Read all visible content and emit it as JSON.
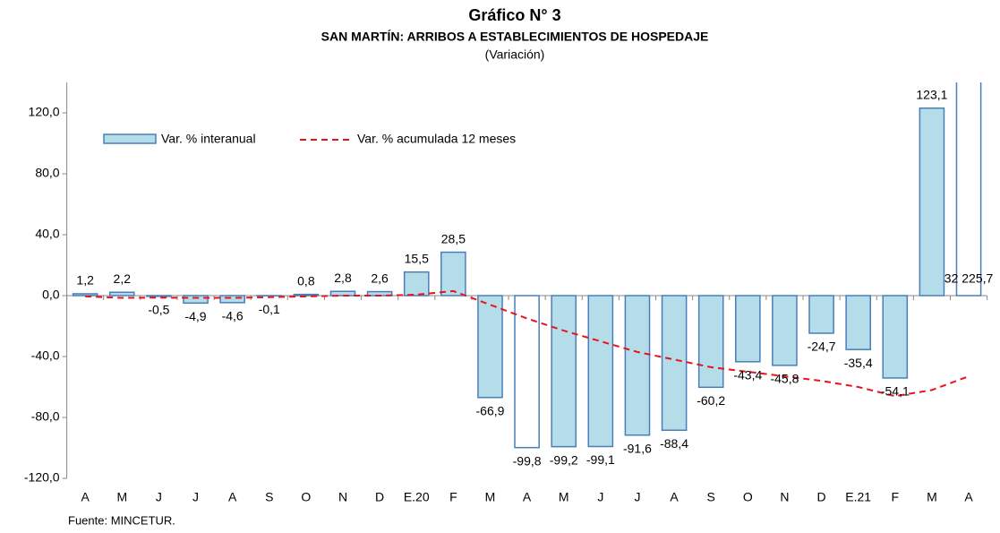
{
  "chart_data": {
    "type": "bar",
    "title": "Gráfico N° 3",
    "subtitle": "SAN MARTÍN: ARRIBOS A ESTABLECIMIENTOS DE HOSPEDAJE",
    "unit_note": "(Variación)",
    "source": "Fuente: MINCETUR.",
    "categories": [
      "A",
      "M",
      "J",
      "J",
      "A",
      "S",
      "O",
      "N",
      "D",
      "E.20",
      "F",
      "M",
      "A",
      "M",
      "J",
      "J",
      "A",
      "S",
      "O",
      "N",
      "D",
      "E.21",
      "F",
      "M",
      "A"
    ],
    "series": [
      {
        "name": "Var. % interanual",
        "type": "bar",
        "color": "#b4dce9",
        "stroke": "#4a7ebb",
        "point_colors": [
          "#b4dce9",
          "#b4dce9",
          "#b4dce9",
          "#b4dce9",
          "#b4dce9",
          "#b4dce9",
          "#b4dce9",
          "#b4dce9",
          "#b4dce9",
          "#b4dce9",
          "#b4dce9",
          "#b4dce9",
          "#ffffff",
          "#b4dce9",
          "#b4dce9",
          "#b4dce9",
          "#b4dce9",
          "#b4dce9",
          "#b4dce9",
          "#b4dce9",
          "#b4dce9",
          "#b4dce9",
          "#b4dce9",
          "#b4dce9",
          "#ffffff"
        ],
        "values": [
          1.2,
          2.2,
          -0.5,
          -4.9,
          -4.6,
          -0.1,
          0.8,
          2.8,
          2.6,
          15.5,
          28.5,
          -66.9,
          -99.8,
          -99.2,
          -99.1,
          -91.6,
          -88.4,
          -60.2,
          -43.4,
          -45.8,
          -24.7,
          -35.4,
          -54.1,
          123.1,
          32225.7
        ],
        "value_labels": [
          "1,2",
          "2,2",
          "-0,5",
          "-4,9",
          "-4,6",
          "-0,1",
          "0,8",
          "2,8",
          "2,6",
          "15,5",
          "28,5",
          "-66,9",
          "-99,8",
          "-99,2",
          "-99,1",
          "-91,6",
          "-88,4",
          "-60,2",
          "-43,4",
          "-45,8",
          "-24,7",
          "-35,4",
          "-54,1",
          "123,1",
          "32 225,7"
        ]
      },
      {
        "name": "Var. % acumulada 12 meses",
        "type": "line",
        "color": "#e8141b",
        "dashed": true,
        "values": [
          -0.5,
          -1.5,
          -1.3,
          -1.5,
          -1.5,
          -1.0,
          -0.5,
          0,
          0,
          0.6,
          3,
          -6,
          -15,
          -23,
          -30,
          -37,
          -42,
          -47,
          -50,
          -53,
          -56,
          -60,
          -66,
          -62,
          -53
        ]
      }
    ],
    "ylim": [
      -120,
      140
    ],
    "yticks": [
      {
        "value": -120,
        "label": "-120,0"
      },
      {
        "value": -80,
        "label": "-80,0"
      },
      {
        "value": -40,
        "label": "-40,0"
      },
      {
        "value": 0,
        "label": "0,0"
      },
      {
        "value": 40,
        "label": "40,0"
      },
      {
        "value": 80,
        "label": "80,0"
      },
      {
        "value": 120,
        "label": "120,0"
      }
    ],
    "grid": false
  }
}
